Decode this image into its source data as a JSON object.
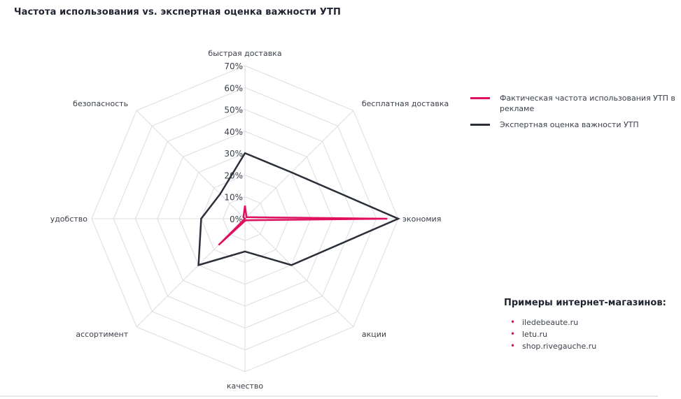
{
  "title": "Частота использования vs. экспертная оценка важности УТП",
  "colors": {
    "actual": "#e0105f",
    "expert": "#2b2f3a",
    "grid": "#dedede",
    "bullet": "#e0105f"
  },
  "chart_data": {
    "type": "radar",
    "title": "Частота использования vs. экспертная оценка важности УТП",
    "categories": [
      "быстрая доставка",
      "бесплатная доставка",
      "экономия",
      "акции",
      "качество",
      "ассортимент",
      "удобство",
      "безопасность"
    ],
    "tick_labels": [
      "0%",
      "10%",
      "20%",
      "30%",
      "40%",
      "50%",
      "60%",
      "70%"
    ],
    "rlim": [
      0,
      70
    ],
    "grid": true,
    "legend_position": "right",
    "series": [
      {
        "name": "Фактическая частота использования УТП в рекламе",
        "values": [
          6,
          1,
          65,
          1,
          1,
          17,
          0,
          1
        ]
      },
      {
        "name": "Экспертная оценка важности УТП",
        "values": [
          30,
          30,
          70,
          30,
          15,
          30,
          20,
          16
        ]
      }
    ]
  },
  "legend": {
    "items": [
      {
        "label": "Фактическая частота использования УТП в рекламе"
      },
      {
        "label": "Экспертная оценка важности УТП"
      }
    ]
  },
  "examples": {
    "title": "Примеры интернет-магазинов:",
    "items": [
      "iledebeaute.ru",
      "letu.ru",
      "shop.rivegauche.ru"
    ]
  }
}
